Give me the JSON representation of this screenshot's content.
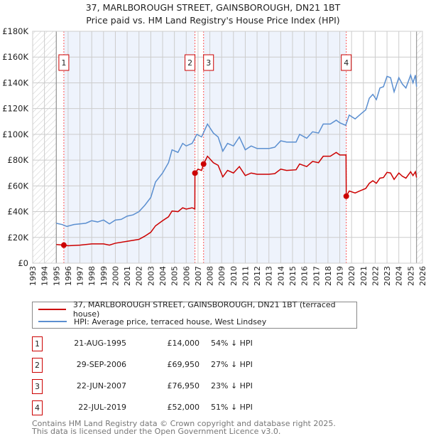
{
  "chart_data": {
    "type": "line",
    "title": "37, MARLBOROUGH STREET, GAINSBOROUGH, DN21 1BT",
    "subtitle": "Price paid vs. HM Land Registry's House Price Index (HPI)",
    "xlim": [
      1993,
      2026
    ],
    "ylim": [
      0,
      180000
    ],
    "y_ticks": [
      0,
      20000,
      40000,
      60000,
      80000,
      100000,
      120000,
      140000,
      160000,
      180000
    ],
    "y_tick_labels": [
      "£0",
      "£20K",
      "£40K",
      "£60K",
      "£80K",
      "£100K",
      "£120K",
      "£140K",
      "£160K",
      "£180K"
    ],
    "x_ticks": [
      1993,
      1994,
      1995,
      1996,
      1997,
      1998,
      1999,
      2000,
      2001,
      2002,
      2003,
      2004,
      2005,
      2006,
      2007,
      2008,
      2009,
      2010,
      2011,
      2012,
      2013,
      2014,
      2015,
      2016,
      2017,
      2018,
      2019,
      2020,
      2021,
      2022,
      2023,
      2024,
      2025,
      2026
    ],
    "grid": true,
    "colors": {
      "property": "#cc0000",
      "hpi": "#5b8fd0",
      "shade": "#eef3fc"
    },
    "series": [
      {
        "name": "37, MARLBOROUGH STREET, GAINSBOROUGH, DN21 1BT (terraced house)",
        "color": "#cc0000",
        "points": [
          [
            1995.0,
            14500
          ],
          [
            1995.64,
            14000
          ],
          [
            1996,
            13500
          ],
          [
            1997,
            14000
          ],
          [
            1998,
            15000
          ],
          [
            1999,
            15000
          ],
          [
            1999.5,
            14000
          ],
          [
            2000,
            15500
          ],
          [
            2001,
            17000
          ],
          [
            2002,
            18500
          ],
          [
            2002.5,
            21000
          ],
          [
            2003,
            24000
          ],
          [
            2003.4,
            29000
          ],
          [
            2004,
            33000
          ],
          [
            2004.5,
            36000
          ],
          [
            2004.8,
            40500
          ],
          [
            2005.3,
            40000
          ],
          [
            2005.7,
            43000
          ],
          [
            2006,
            42000
          ],
          [
            2006.5,
            43000
          ],
          [
            2006.73,
            42000
          ],
          [
            2006.74,
            69950
          ],
          [
            2007,
            73000
          ],
          [
            2007.3,
            72000
          ],
          [
            2007.47,
            76950
          ],
          [
            2007.8,
            83000
          ],
          [
            2008.3,
            78000
          ],
          [
            2008.7,
            76000
          ],
          [
            2009.1,
            67000
          ],
          [
            2009.5,
            72000
          ],
          [
            2010,
            70000
          ],
          [
            2010.5,
            75000
          ],
          [
            2011,
            68000
          ],
          [
            2011.5,
            70000
          ],
          [
            2012,
            69000
          ],
          [
            2013,
            69000
          ],
          [
            2013.5,
            69500
          ],
          [
            2014,
            73000
          ],
          [
            2014.5,
            72000
          ],
          [
            2015.3,
            72500
          ],
          [
            2015.6,
            77000
          ],
          [
            2016.2,
            75000
          ],
          [
            2016.7,
            79000
          ],
          [
            2017.2,
            78000
          ],
          [
            2017.6,
            83000
          ],
          [
            2018.2,
            83000
          ],
          [
            2018.7,
            86000
          ],
          [
            2019,
            84000
          ],
          [
            2019.53,
            84000
          ],
          [
            2019.55,
            52000
          ],
          [
            2019.8,
            56000
          ],
          [
            2020.3,
            54500
          ],
          [
            2020.8,
            56500
          ],
          [
            2021.2,
            58000
          ],
          [
            2021.5,
            62000
          ],
          [
            2021.8,
            64000
          ],
          [
            2022.1,
            62000
          ],
          [
            2022.4,
            66000
          ],
          [
            2022.7,
            66500
          ],
          [
            2023,
            70500
          ],
          [
            2023.3,
            70000
          ],
          [
            2023.6,
            65000
          ],
          [
            2024,
            70000
          ],
          [
            2024.3,
            67500
          ],
          [
            2024.6,
            66000
          ],
          [
            2025,
            71000
          ],
          [
            2025.2,
            68000
          ],
          [
            2025.4,
            71000
          ],
          [
            2025.5,
            66500
          ]
        ]
      },
      {
        "name": "HPI: Average price, terraced house, West Lindsey",
        "color": "#5b8fd0",
        "points": [
          [
            1995.0,
            31000
          ],
          [
            1995.5,
            30000
          ],
          [
            1995.9,
            28500
          ],
          [
            1996.5,
            30000
          ],
          [
            1997.5,
            31000
          ],
          [
            1998,
            33000
          ],
          [
            1998.5,
            32000
          ],
          [
            1999,
            33500
          ],
          [
            1999.5,
            30500
          ],
          [
            2000,
            33500
          ],
          [
            2000.5,
            34000
          ],
          [
            2001,
            36500
          ],
          [
            2001.5,
            37500
          ],
          [
            2002,
            40000
          ],
          [
            2002.5,
            45000
          ],
          [
            2003,
            51000
          ],
          [
            2003.4,
            63000
          ],
          [
            2004,
            70000
          ],
          [
            2004.5,
            78000
          ],
          [
            2004.8,
            88000
          ],
          [
            2005.3,
            86000
          ],
          [
            2005.7,
            93000
          ],
          [
            2006,
            91000
          ],
          [
            2006.5,
            93000
          ],
          [
            2006.9,
            100000
          ],
          [
            2007.3,
            98000
          ],
          [
            2007.8,
            108000
          ],
          [
            2008.3,
            101000
          ],
          [
            2008.7,
            98000
          ],
          [
            2009.1,
            87000
          ],
          [
            2009.5,
            93000
          ],
          [
            2010,
            91000
          ],
          [
            2010.5,
            98000
          ],
          [
            2011,
            88000
          ],
          [
            2011.5,
            91000
          ],
          [
            2012,
            89000
          ],
          [
            2013,
            89000
          ],
          [
            2013.5,
            90000
          ],
          [
            2014,
            95000
          ],
          [
            2014.5,
            94000
          ],
          [
            2015.3,
            94000
          ],
          [
            2015.6,
            100000
          ],
          [
            2016.2,
            97000
          ],
          [
            2016.7,
            102000
          ],
          [
            2017.2,
            101000
          ],
          [
            2017.6,
            108000
          ],
          [
            2018.2,
            108000
          ],
          [
            2018.7,
            111000
          ],
          [
            2019,
            109000
          ],
          [
            2019.5,
            107000
          ],
          [
            2019.8,
            115000
          ],
          [
            2020.3,
            112000
          ],
          [
            2020.8,
            116000
          ],
          [
            2021.2,
            119000
          ],
          [
            2021.5,
            128000
          ],
          [
            2021.8,
            131000
          ],
          [
            2022.1,
            127000
          ],
          [
            2022.4,
            136000
          ],
          [
            2022.7,
            137000
          ],
          [
            2023,
            145000
          ],
          [
            2023.3,
            144000
          ],
          [
            2023.6,
            133000
          ],
          [
            2024,
            144000
          ],
          [
            2024.3,
            139000
          ],
          [
            2024.6,
            136000
          ],
          [
            2025,
            146000
          ],
          [
            2025.2,
            140000
          ],
          [
            2025.4,
            146000
          ],
          [
            2025.5,
            137000
          ]
        ]
      }
    ],
    "sales": [
      {
        "label": "1",
        "x": 1995.64,
        "value": 14000
      },
      {
        "label": "2",
        "x": 2006.74,
        "value": 69950
      },
      {
        "label": "3",
        "x": 2007.47,
        "value": 76950
      },
      {
        "label": "4",
        "x": 2019.55,
        "value": 52000
      }
    ],
    "data_range": [
      1995.0,
      2025.5
    ]
  },
  "legend": {
    "property": "37, MARLBOROUGH STREET, GAINSBOROUGH, DN21 1BT (terraced house)",
    "hpi": "HPI: Average price, terraced house, West Lindsey"
  },
  "transactions": [
    {
      "num": "1",
      "date": "21-AUG-1995",
      "price": "£14,000",
      "hpi": "54% ↓ HPI"
    },
    {
      "num": "2",
      "date": "29-SEP-2006",
      "price": "£69,950",
      "hpi": "27% ↓ HPI"
    },
    {
      "num": "3",
      "date": "22-JUN-2007",
      "price": "£76,950",
      "hpi": "23% ↓ HPI"
    },
    {
      "num": "4",
      "date": "22-JUL-2019",
      "price": "£52,000",
      "hpi": "51% ↓ HPI"
    }
  ],
  "footer": {
    "line1": "Contains HM Land Registry data © Crown copyright and database right 2025.",
    "line2": "This data is licensed under the Open Government Licence v3.0."
  }
}
